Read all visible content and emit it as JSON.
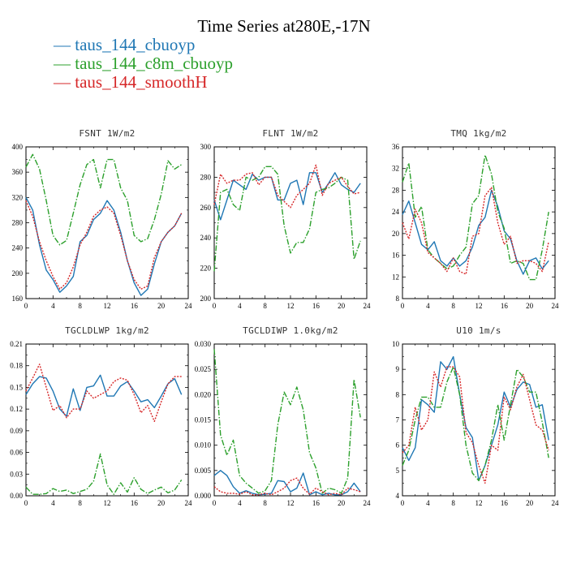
{
  "title": "Time Series at280E,-17N",
  "legend": [
    {
      "label": "— taus_144_cbuoyp",
      "color": "#1f77b4",
      "dash": "solid"
    },
    {
      "label": "— taus_144_c8m_cbuoyp",
      "color": "#2ca02c",
      "dash": "dashdot"
    },
    {
      "label": "— taus_144_smoothH",
      "color": "#d62728",
      "dash": "dotted"
    }
  ],
  "chart_data": [
    {
      "type": "line",
      "title": "FSNT   1W/m2",
      "x": [
        0,
        1,
        2,
        3,
        4,
        5,
        6,
        7,
        8,
        9,
        10,
        11,
        12,
        13,
        14,
        15,
        16,
        17,
        18,
        19,
        20,
        21,
        22,
        23
      ],
      "xticks": [
        0,
        4,
        8,
        12,
        16,
        20,
        24
      ],
      "xlim": [
        0,
        24
      ],
      "ylim": [
        160,
        400
      ],
      "yticks": [
        160,
        200,
        240,
        280,
        320,
        360,
        400
      ],
      "ytick_labels": [
        "160",
        "200",
        "240",
        "280",
        "320",
        "360",
        "400"
      ],
      "series": [
        {
          "values": [
            320,
            300,
            245,
            205,
            190,
            170,
            180,
            195,
            250,
            260,
            285,
            295,
            315,
            300,
            265,
            220,
            185,
            165,
            175,
            215,
            250,
            265,
            275,
            295
          ],
          "color": "#1f77b4",
          "dash": "solid"
        },
        {
          "values": [
            368,
            388,
            365,
            315,
            260,
            245,
            252,
            295,
            340,
            372,
            380,
            335,
            380,
            380,
            335,
            315,
            260,
            250,
            255,
            285,
            325,
            378,
            365,
            372
          ],
          "color": "#2ca02c",
          "dash": "dashdot"
        },
        {
          "values": [
            315,
            290,
            250,
            220,
            195,
            175,
            185,
            210,
            245,
            265,
            290,
            300,
            305,
            295,
            260,
            220,
            190,
            175,
            180,
            225,
            250,
            265,
            275,
            295
          ],
          "color": "#d62728",
          "dash": "dotted"
        }
      ]
    },
    {
      "type": "line",
      "title": "FLNT   1W/m2",
      "x": [
        0,
        1,
        2,
        3,
        4,
        5,
        6,
        7,
        8,
        9,
        10,
        11,
        12,
        13,
        14,
        15,
        16,
        17,
        18,
        19,
        20,
        21,
        22,
        23
      ],
      "xticks": [
        0,
        4,
        8,
        12,
        16,
        20,
        24
      ],
      "xlim": [
        0,
        24
      ],
      "ylim": [
        200,
        300
      ],
      "yticks": [
        200,
        220,
        240,
        260,
        280,
        300
      ],
      "ytick_labels": [
        "200",
        "220",
        "240",
        "260",
        "280",
        "300"
      ],
      "series": [
        {
          "values": [
            265,
            252,
            265,
            278,
            275,
            272,
            282,
            278,
            280,
            280,
            265,
            265,
            276,
            278,
            262,
            283,
            283,
            270,
            276,
            283,
            275,
            272,
            270,
            276
          ],
          "color": "#1f77b4",
          "dash": "solid"
        },
        {
          "values": [
            218,
            270,
            272,
            262,
            258,
            280,
            278,
            280,
            287,
            287,
            282,
            248,
            230,
            237,
            237,
            246,
            270,
            272,
            273,
            276,
            280,
            278,
            226,
            238
          ],
          "color": "#2ca02c",
          "dash": "dashdot"
        },
        {
          "values": [
            262,
            282,
            276,
            278,
            278,
            282,
            283,
            275,
            280,
            280,
            268,
            264,
            260,
            268,
            272,
            276,
            288,
            268,
            276,
            278,
            280,
            274,
            269,
            270
          ],
          "color": "#d62728",
          "dash": "dotted"
        }
      ]
    },
    {
      "type": "line",
      "title": "TMQ   1kg/m2",
      "x": [
        0,
        1,
        2,
        3,
        4,
        5,
        6,
        7,
        8,
        9,
        10,
        11,
        12,
        13,
        14,
        15,
        16,
        17,
        18,
        19,
        20,
        21,
        22,
        23
      ],
      "xticks": [
        0,
        4,
        8,
        12,
        16,
        20,
        24
      ],
      "xlim": [
        0,
        24
      ],
      "ylim": [
        8,
        36
      ],
      "yticks": [
        8,
        12,
        16,
        20,
        24,
        28,
        32,
        36
      ],
      "ytick_labels": [
        "8",
        "12",
        "16",
        "20",
        "24",
        "28",
        "32",
        "36"
      ],
      "series": [
        {
          "values": [
            23.5,
            26,
            22,
            18,
            17,
            18.5,
            15,
            14,
            15.5,
            14,
            15,
            17.5,
            21.5,
            23,
            28,
            25,
            20.5,
            19,
            15,
            12.5,
            15,
            15.5,
            13.5,
            15
          ],
          "color": "#1f77b4",
          "dash": "solid"
        },
        {
          "values": [
            29.5,
            33,
            23,
            25,
            17,
            15.5,
            14.5,
            13.5,
            14,
            16,
            17.5,
            25.5,
            27,
            34.5,
            31,
            24,
            21,
            14.5,
            15,
            14.5,
            11.5,
            11.5,
            17,
            24
          ],
          "color": "#2ca02c",
          "dash": "dashdot"
        },
        {
          "values": [
            22,
            19,
            24.5,
            22,
            16.5,
            15.5,
            14.5,
            13,
            15.5,
            13,
            12.5,
            19.5,
            20,
            27,
            28.5,
            22,
            18,
            19.5,
            14.5,
            15,
            15,
            14.5,
            13,
            18.5
          ],
          "color": "#d62728",
          "dash": "dotted"
        }
      ]
    },
    {
      "type": "line",
      "title": "TGCLDLWP   1kg/m2",
      "x": [
        0,
        1,
        2,
        3,
        4,
        5,
        6,
        7,
        8,
        9,
        10,
        11,
        12,
        13,
        14,
        15,
        16,
        17,
        18,
        19,
        20,
        21,
        22,
        23
      ],
      "xticks": [
        0,
        4,
        8,
        12,
        16,
        20,
        24
      ],
      "xlim": [
        0,
        24
      ],
      "ylim": [
        0,
        0.21
      ],
      "yticks": [
        0,
        0.03,
        0.06,
        0.09,
        0.12,
        0.15,
        0.18,
        0.21
      ],
      "ytick_labels": [
        "0.00",
        "0.03",
        "0.06",
        "0.09",
        "0.12",
        "0.15",
        "0.18",
        "0.21"
      ],
      "series": [
        {
          "values": [
            0.14,
            0.155,
            0.165,
            0.163,
            0.145,
            0.12,
            0.11,
            0.148,
            0.118,
            0.15,
            0.152,
            0.167,
            0.138,
            0.138,
            0.152,
            0.158,
            0.145,
            0.13,
            0.133,
            0.122,
            0.138,
            0.155,
            0.162,
            0.14
          ],
          "color": "#1f77b4",
          "dash": "solid"
        },
        {
          "values": [
            0.012,
            0.002,
            0.002,
            0.003,
            0.01,
            0.006,
            0.008,
            0.003,
            0.006,
            0.009,
            0.02,
            0.058,
            0.015,
            0.002,
            0.018,
            0.005,
            0.025,
            0.009,
            0.003,
            0.008,
            0.012,
            0.004,
            0.008,
            0.022
          ],
          "color": "#2ca02c",
          "dash": "dashdot"
        },
        {
          "values": [
            0.145,
            0.163,
            0.182,
            0.15,
            0.118,
            0.125,
            0.108,
            0.12,
            0.12,
            0.145,
            0.135,
            0.14,
            0.145,
            0.158,
            0.163,
            0.16,
            0.14,
            0.115,
            0.125,
            0.103,
            0.13,
            0.155,
            0.165,
            0.165
          ],
          "color": "#d62728",
          "dash": "dotted"
        }
      ]
    },
    {
      "type": "line",
      "title": "TGCLDIWP   1.0kg/m2",
      "x": [
        0,
        1,
        2,
        3,
        4,
        5,
        6,
        7,
        8,
        9,
        10,
        11,
        12,
        13,
        14,
        15,
        16,
        17,
        18,
        19,
        20,
        21,
        22,
        23
      ],
      "xticks": [
        0,
        4,
        8,
        12,
        16,
        20,
        24
      ],
      "xlim": [
        0,
        24
      ],
      "ylim": [
        0,
        0.03
      ],
      "yticks": [
        0,
        0.005,
        0.01,
        0.015,
        0.02,
        0.025,
        0.03
      ],
      "ytick_labels": [
        "0.000",
        "0.005",
        "0.010",
        "0.015",
        "0.020",
        "0.025",
        "0.030"
      ],
      "series": [
        {
          "values": [
            0.004,
            0.005,
            0.004,
            0.0018,
            0.0005,
            0.001,
            0.0005,
            0.0002,
            0.0003,
            0.0005,
            0.003,
            0.0028,
            0.0008,
            0.0015,
            0.0045,
            0.0002,
            0.0008,
            0.0002,
            0.0005,
            0.0002,
            0.0002,
            0.0008,
            0.0025,
            0.0008
          ],
          "color": "#1f77b4",
          "dash": "solid"
        },
        {
          "values": [
            0.029,
            0.012,
            0.008,
            0.011,
            0.004,
            0.0025,
            0.0015,
            0.0005,
            0.001,
            0.003,
            0.014,
            0.0205,
            0.018,
            0.0215,
            0.017,
            0.0085,
            0.0055,
            0.0005,
            0.0015,
            0.0012,
            0.0005,
            0.0035,
            0.023,
            0.0155
          ],
          "color": "#2ca02c",
          "dash": "dashdot"
        },
        {
          "values": [
            0.0018,
            0.0008,
            0.0005,
            0.0005,
            0.0003,
            0.0008,
            0.0002,
            0.0002,
            0.0005,
            0.0002,
            0.0008,
            0.0015,
            0.003,
            0.0035,
            0.0015,
            0.0003,
            0.0015,
            0.0008,
            0.0002,
            0.0005,
            0.0002,
            0.0015,
            0.0012,
            0.0008
          ],
          "color": "#d62728",
          "dash": "dotted"
        }
      ]
    },
    {
      "type": "line",
      "title": "U10   1m/s",
      "x": [
        0,
        1,
        2,
        3,
        4,
        5,
        6,
        7,
        8,
        9,
        10,
        11,
        12,
        13,
        14,
        15,
        16,
        17,
        18,
        19,
        20,
        21,
        22,
        23
      ],
      "xticks": [
        0,
        4,
        8,
        12,
        16,
        20,
        24
      ],
      "xlim": [
        0,
        24
      ],
      "ylim": [
        4,
        10
      ],
      "yticks": [
        4,
        5,
        6,
        7,
        8,
        9,
        10
      ],
      "ytick_labels": [
        "4",
        "5",
        "6",
        "7",
        "8",
        "9",
        "10"
      ],
      "series": [
        {
          "values": [
            5.9,
            5.4,
            5.9,
            7.8,
            7.6,
            7.3,
            9.3,
            9.0,
            9.5,
            8.0,
            6.7,
            6.3,
            4.6,
            5.2,
            6.0,
            6.8,
            8.1,
            7.5,
            8.2,
            8.5,
            8.4,
            7.5,
            7.6,
            6.2
          ],
          "color": "#1f77b4",
          "dash": "solid"
        },
        {
          "values": [
            5.2,
            5.8,
            7.0,
            7.9,
            7.9,
            7.5,
            7.5,
            8.5,
            9.1,
            8.0,
            6.0,
            4.9,
            4.6,
            5.2,
            6.2,
            7.6,
            6.2,
            7.6,
            9.0,
            8.7,
            8.1,
            8.1,
            6.9,
            5.5
          ],
          "color": "#2ca02c",
          "dash": "dashdot"
        },
        {
          "values": [
            5.7,
            6.0,
            7.5,
            6.6,
            7.0,
            8.9,
            8.3,
            9.1,
            9.1,
            8.7,
            6.5,
            6.1,
            5.2,
            4.5,
            6.0,
            5.8,
            7.9,
            7.4,
            8.3,
            8.8,
            7.8,
            6.8,
            6.6,
            5.8
          ],
          "color": "#d62728",
          "dash": "dotted"
        }
      ]
    }
  ]
}
